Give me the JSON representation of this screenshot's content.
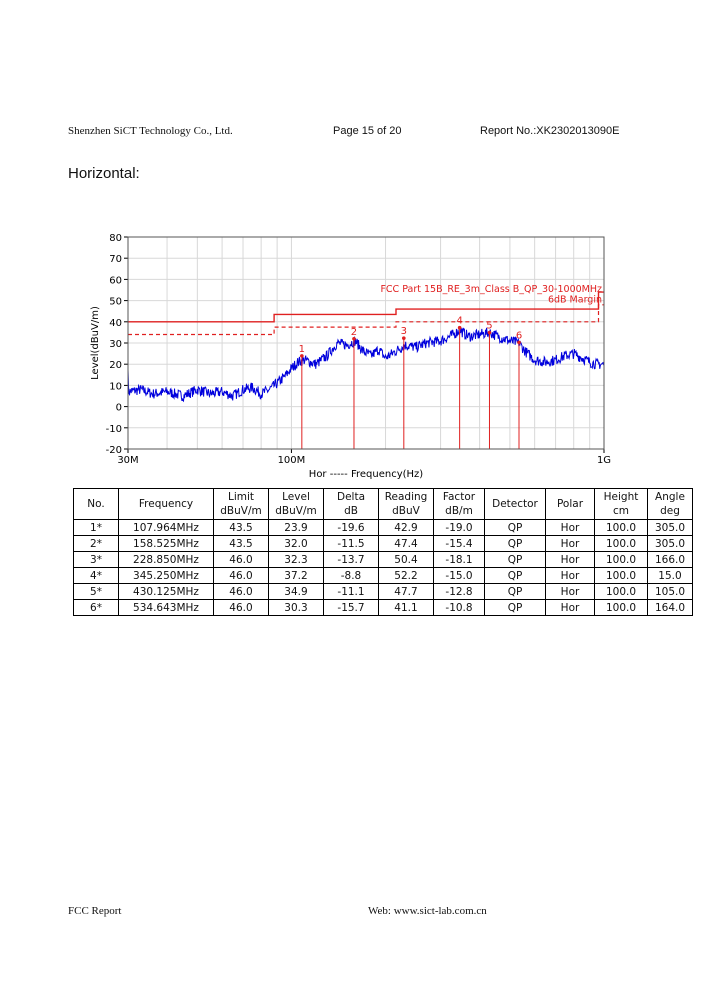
{
  "header": {
    "company": "Shenzhen SiCT Technology Co., Ltd.",
    "page": "Page 15 of 20",
    "report_no": "Report No.:XK2302013090E"
  },
  "section_title": "Horizontal:",
  "colors": {
    "trace": "#0000dd",
    "limit": "#e02020",
    "grid": "#d8d8d8"
  },
  "chart_data": {
    "type": "line",
    "xscale": "log",
    "xlabel": "Hor ----- Frequency(Hz)",
    "ylabel": "Level(dBuV/m)",
    "xlim": [
      30,
      1000
    ],
    "ylim": [
      -20,
      80
    ],
    "x_unit": "MHz",
    "yticks": [
      80,
      70,
      60,
      50,
      40,
      30,
      20,
      10,
      0,
      -10,
      -20
    ],
    "xticks": [
      {
        "value": 30,
        "label": "30M"
      },
      {
        "value": 100,
        "label": "100M"
      },
      {
        "value": 1000,
        "label": "1G"
      }
    ],
    "grid": true,
    "limit_label": "FCC Part 15B_RE_3m_Class B_QP_30-1000MHz",
    "margin_label": "6dB Margin",
    "limit_segments": [
      {
        "from": 30,
        "to": 88,
        "level": 40
      },
      {
        "from": 88,
        "to": 216,
        "level": 43.5
      },
      {
        "from": 216,
        "to": 960,
        "level": 46
      },
      {
        "from": 960,
        "to": 1000,
        "level": 54
      }
    ],
    "margin_segments": [
      {
        "from": 30,
        "to": 88,
        "level": 34
      },
      {
        "from": 88,
        "to": 216,
        "level": 37.5
      },
      {
        "from": 216,
        "to": 960,
        "level": 40
      },
      {
        "from": 960,
        "to": 1000,
        "level": 48
      }
    ],
    "trace": {
      "x": [
        30,
        33,
        36,
        40,
        45,
        50,
        55,
        60,
        65,
        70,
        75,
        80,
        85,
        90,
        95,
        100,
        105,
        110,
        120,
        130,
        140,
        150,
        160,
        170,
        180,
        190,
        200,
        215,
        230,
        250,
        270,
        300,
        330,
        345,
        370,
        400,
        430,
        460,
        500,
        535,
        560,
        600,
        650,
        700,
        750,
        800,
        850,
        900,
        950,
        1000
      ],
      "y": [
        7,
        8,
        6,
        7,
        5,
        8,
        6,
        7,
        5,
        8,
        9,
        6,
        8,
        11,
        14,
        18,
        21,
        22,
        20,
        24,
        30,
        29,
        31,
        26,
        24,
        27,
        23,
        26,
        29,
        28,
        30,
        31,
        34,
        36,
        33,
        34,
        35,
        33,
        31,
        30,
        26,
        22,
        21,
        22,
        24,
        25,
        23,
        21,
        20,
        20
      ]
    },
    "markers": [
      {
        "label": "1",
        "x": 107.964,
        "y": 23.9
      },
      {
        "label": "2",
        "x": 158.525,
        "y": 32.0
      },
      {
        "label": "3",
        "x": 228.85,
        "y": 32.3
      },
      {
        "label": "4",
        "x": 345.25,
        "y": 37.2
      },
      {
        "label": "5",
        "x": 430.125,
        "y": 34.9
      },
      {
        "label": "6",
        "x": 534.643,
        "y": 30.3
      }
    ]
  },
  "table": {
    "headers": [
      [
        "No.",
        ""
      ],
      [
        "Frequency",
        ""
      ],
      [
        "Limit",
        "dBuV/m"
      ],
      [
        "Level",
        "dBuV/m"
      ],
      [
        "Delta",
        "dB"
      ],
      [
        "Reading",
        "dBuV"
      ],
      [
        "Factor",
        "dB/m"
      ],
      [
        "Detector",
        ""
      ],
      [
        "Polar",
        ""
      ],
      [
        "Height",
        "cm"
      ],
      [
        "Angle",
        "deg"
      ]
    ],
    "rows": [
      [
        "1*",
        "107.964MHz",
        "43.5",
        "23.9",
        "-19.6",
        "42.9",
        "-19.0",
        "QP",
        "Hor",
        "100.0",
        "305.0"
      ],
      [
        "2*",
        "158.525MHz",
        "43.5",
        "32.0",
        "-11.5",
        "47.4",
        "-15.4",
        "QP",
        "Hor",
        "100.0",
        "305.0"
      ],
      [
        "3*",
        "228.850MHz",
        "46.0",
        "32.3",
        "-13.7",
        "50.4",
        "-18.1",
        "QP",
        "Hor",
        "100.0",
        "166.0"
      ],
      [
        "4*",
        "345.250MHz",
        "46.0",
        "37.2",
        "-8.8",
        "52.2",
        "-15.0",
        "QP",
        "Hor",
        "100.0",
        "15.0"
      ],
      [
        "5*",
        "430.125MHz",
        "46.0",
        "34.9",
        "-11.1",
        "47.7",
        "-12.8",
        "QP",
        "Hor",
        "100.0",
        "105.0"
      ],
      [
        "6*",
        "534.643MHz",
        "46.0",
        "30.3",
        "-15.7",
        "41.1",
        "-10.8",
        "QP",
        "Hor",
        "100.0",
        "164.0"
      ]
    ]
  },
  "footer": {
    "left": "FCC Report",
    "right": "Web: www.sict-lab.com.cn"
  }
}
